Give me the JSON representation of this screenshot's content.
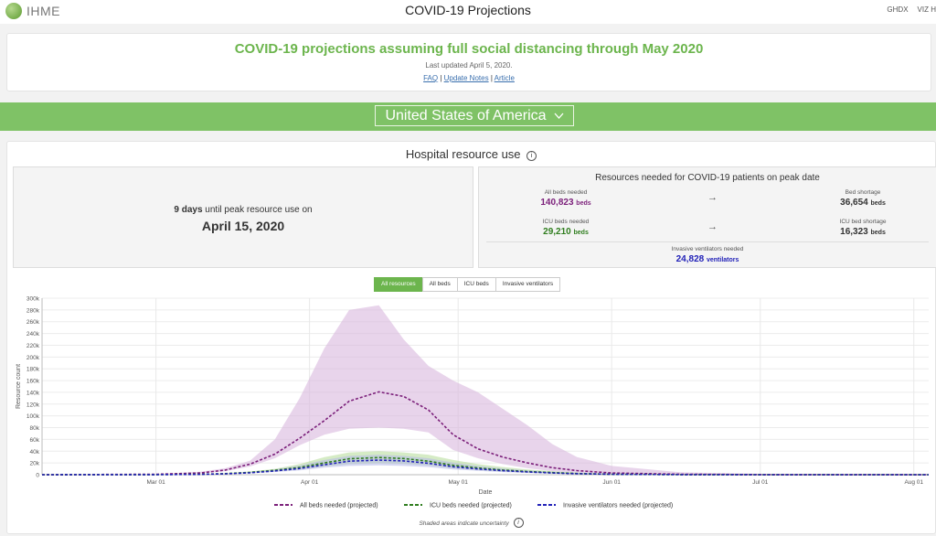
{
  "app": {
    "logo_text": "IHME",
    "title": "COVID-19 Projections",
    "nav": [
      "GHDX",
      "VIZ H"
    ]
  },
  "header": {
    "headline": "COVID-19 projections assuming full social distancing through May 2020",
    "updated": "Last updated April 5, 2020.",
    "links": [
      "FAQ",
      "Update Notes",
      "Article"
    ],
    "sep": "|"
  },
  "location": {
    "selected": "United States of America"
  },
  "section": {
    "title": "Hospital resource use"
  },
  "peak": {
    "days": "9 days",
    "rest": " until peak resource use on",
    "date": "April 15, 2020"
  },
  "resources": {
    "title": "Resources needed for COVID-19 patients on peak date",
    "all_beds_label": "All beds needed",
    "all_beds_value": "140,823",
    "beds_unit": "beds",
    "bed_shortage_label": "Bed shortage",
    "bed_shortage_value": "36,654",
    "icu_label": "ICU beds needed",
    "icu_value": "29,210",
    "icu_shortage_label": "ICU bed shortage",
    "icu_shortage_value": "16,323",
    "vent_label": "Invasive ventilators needed",
    "vent_value": "24,828",
    "vent_unit": "ventilators",
    "arrow": "→"
  },
  "tabs": [
    "All resources",
    "All beds",
    "ICU beds",
    "Invasive ventilators"
  ],
  "colors": {
    "accent": "#6cb54d",
    "all_beds": "#7b1f7a",
    "icu": "#2f7d1e",
    "vent": "#2222b8"
  },
  "chart_data": {
    "type": "line",
    "xlabel": "Date",
    "ylabel": "Resource count",
    "ylim": [
      0,
      300000
    ],
    "x_ticks": [
      "Mar 01",
      "Apr 01",
      "May 01",
      "Jun 01",
      "Jul 01",
      "Aug 01"
    ],
    "y_ticks": [
      "0",
      "20k",
      "40k",
      "60k",
      "80k",
      "100k",
      "120k",
      "140k",
      "160k",
      "180k",
      "200k",
      "220k",
      "240k",
      "260k",
      "280k",
      "300k"
    ],
    "x_range": [
      "2020-02-07",
      "2020-08-04"
    ],
    "series": [
      {
        "name": "All beds needed (projected)",
        "color": "#7b1f7a",
        "x": [
          "2020-02-07",
          "2020-03-01",
          "2020-03-10",
          "2020-03-15",
          "2020-03-20",
          "2020-03-25",
          "2020-03-30",
          "2020-04-04",
          "2020-04-09",
          "2020-04-15",
          "2020-04-20",
          "2020-04-25",
          "2020-04-30",
          "2020-05-05",
          "2020-05-10",
          "2020-05-15",
          "2020-05-20",
          "2020-05-25",
          "2020-06-01",
          "2020-06-15",
          "2020-07-01",
          "2020-08-04"
        ],
        "y": [
          0,
          800,
          3000,
          8000,
          18000,
          35000,
          62000,
          92000,
          125000,
          140823,
          133000,
          110000,
          68000,
          44000,
          30000,
          20000,
          12000,
          7000,
          3000,
          700,
          200,
          0
        ],
        "lower": [
          0,
          500,
          2000,
          6000,
          14000,
          28000,
          50000,
          68000,
          78000,
          80000,
          78000,
          72000,
          42000,
          28000,
          18000,
          11000,
          6000,
          3500,
          1500,
          400,
          100,
          0
        ],
        "upper": [
          0,
          1200,
          5000,
          11000,
          24000,
          60000,
          130000,
          215000,
          280000,
          288000,
          230000,
          185000,
          160000,
          140000,
          112000,
          84000,
          52000,
          30000,
          15000,
          4000,
          1500,
          0
        ]
      },
      {
        "name": "ICU beds needed (projected)",
        "color": "#2f7d1e",
        "x": [
          "2020-02-07",
          "2020-03-01",
          "2020-03-10",
          "2020-03-15",
          "2020-03-20",
          "2020-03-25",
          "2020-03-30",
          "2020-04-04",
          "2020-04-09",
          "2020-04-15",
          "2020-04-20",
          "2020-04-25",
          "2020-04-30",
          "2020-05-05",
          "2020-05-10",
          "2020-05-15",
          "2020-05-20",
          "2020-05-25",
          "2020-06-01",
          "2020-06-15",
          "2020-07-01",
          "2020-08-04"
        ],
        "y": [
          0,
          150,
          700,
          1800,
          4000,
          7500,
          12500,
          20000,
          27000,
          29210,
          27500,
          23000,
          16000,
          11500,
          8000,
          5500,
          3500,
          2000,
          800,
          200,
          50,
          0
        ],
        "lower": [
          0,
          100,
          500,
          1300,
          3000,
          5500,
          9000,
          14000,
          18000,
          19500,
          18500,
          16000,
          11000,
          8000,
          5500,
          3500,
          2200,
          1200,
          500,
          100,
          30,
          0
        ],
        "upper": [
          0,
          250,
          1000,
          2500,
          5500,
          10000,
          18000,
          30000,
          38000,
          40000,
          38000,
          34000,
          25000,
          18000,
          13000,
          9000,
          6000,
          3500,
          1600,
          400,
          100,
          0
        ]
      },
      {
        "name": "Invasive ventilators needed (projected)",
        "color": "#2222b8",
        "x": [
          "2020-02-07",
          "2020-03-01",
          "2020-03-10",
          "2020-03-15",
          "2020-03-20",
          "2020-03-25",
          "2020-03-30",
          "2020-04-04",
          "2020-04-09",
          "2020-04-15",
          "2020-04-20",
          "2020-04-25",
          "2020-04-30",
          "2020-05-05",
          "2020-05-10",
          "2020-05-15",
          "2020-05-20",
          "2020-05-25",
          "2020-06-01",
          "2020-06-15",
          "2020-07-01",
          "2020-08-04"
        ],
        "y": [
          0,
          120,
          600,
          1500,
          3300,
          6400,
          10500,
          17000,
          23000,
          24828,
          23400,
          19500,
          13500,
          9800,
          6800,
          4700,
          3000,
          1700,
          700,
          150,
          40,
          0
        ],
        "lower": [
          0,
          80,
          400,
          1000,
          2400,
          4600,
          7500,
          12000,
          15000,
          16000,
          15000,
          13000,
          9000,
          6500,
          4500,
          3000,
          1900,
          1000,
          400,
          80,
          20,
          0
        ],
        "upper": [
          0,
          200,
          850,
          2200,
          4800,
          8800,
          15500,
          25000,
          32000,
          34000,
          32000,
          28000,
          20500,
          15000,
          10500,
          7500,
          5000,
          2900,
          1300,
          300,
          80,
          0
        ]
      }
    ],
    "legend_position": "bottom",
    "grid": true
  },
  "footnote": "Shaded areas indicate uncertainty"
}
